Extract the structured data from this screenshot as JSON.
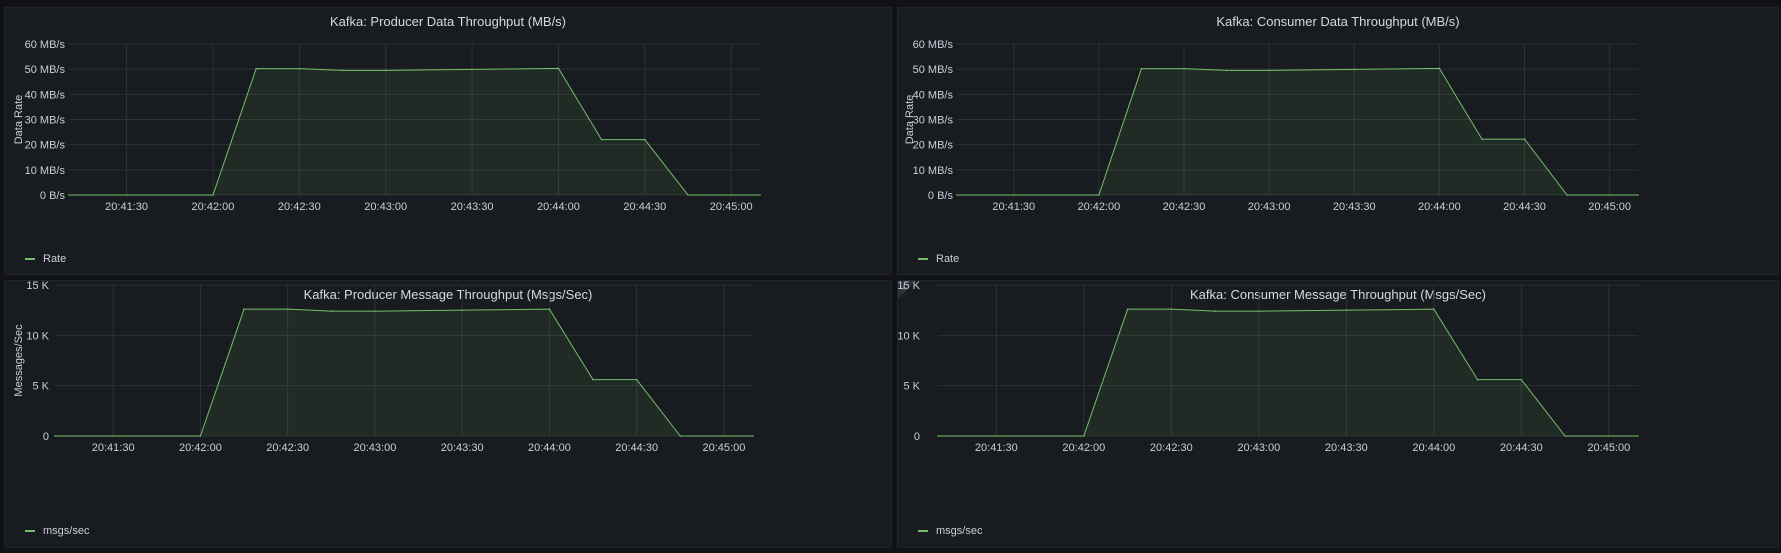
{
  "theme": {
    "series_color": "#73BF69",
    "grid_color": "#2c3235",
    "tick_color": "#c7d0d9"
  },
  "panels": [
    {
      "title": "Kafka: Producer Data Throughput (MB/s)",
      "legend_label": "Rate",
      "info_icon": false
    },
    {
      "title": "Kafka: Consumer Data Throughput (MB/s)",
      "legend_label": "Rate",
      "info_icon": false
    },
    {
      "title": "Kafka: Producer Message Throughput (Msgs/Sec)",
      "legend_label": "msgs/sec",
      "info_icon": false
    },
    {
      "title": "Kafka: Consumer Message Throughput (Msgs/Sec)",
      "legend_label": "msgs/sec",
      "info_icon": true,
      "info_glyph": "i"
    }
  ],
  "chart_data": [
    {
      "type": "area",
      "title": "Kafka: Producer Data Throughput (MB/s)",
      "ylabel": "Data Rate",
      "xlabel": "",
      "x_tick_labels": [
        "20:41:30",
        "20:42:00",
        "20:42:30",
        "20:43:00",
        "20:43:30",
        "20:44:00",
        "20:44:30",
        "20:45:00"
      ],
      "y_tick_labels": [
        "0 B/s",
        "10 MB/s",
        "20 MB/s",
        "30 MB/s",
        "40 MB/s",
        "50 MB/s",
        "60 MB/s"
      ],
      "ylim": [
        0,
        60
      ],
      "xlim": [
        "20:41:10",
        "20:45:10"
      ],
      "grid": true,
      "legend_position": "bottom-left",
      "series": [
        {
          "name": "Rate",
          "x": [
            "20:41:10",
            "20:41:30",
            "20:42:00",
            "20:42:15",
            "20:42:30",
            "20:42:45",
            "20:43:00",
            "20:43:30",
            "20:44:00",
            "20:44:15",
            "20:44:30",
            "20:44:45",
            "20:45:00",
            "20:45:10"
          ],
          "values": [
            0,
            0,
            0,
            50.2,
            50.2,
            49.5,
            49.5,
            49.9,
            50.3,
            22.0,
            22.0,
            0,
            0,
            0
          ]
        }
      ]
    },
    {
      "type": "area",
      "title": "Kafka: Consumer Data Throughput (MB/s)",
      "ylabel": "Data Rate",
      "xlabel": "",
      "x_tick_labels": [
        "20:41:30",
        "20:42:00",
        "20:42:30",
        "20:43:00",
        "20:43:30",
        "20:44:00",
        "20:44:30",
        "20:45:00"
      ],
      "y_tick_labels": [
        "0 B/s",
        "10 MB/s",
        "20 MB/s",
        "30 MB/s",
        "40 MB/s",
        "50 MB/s",
        "60 MB/s"
      ],
      "ylim": [
        0,
        60
      ],
      "xlim": [
        "20:41:10",
        "20:45:10"
      ],
      "grid": true,
      "legend_position": "bottom-left",
      "series": [
        {
          "name": "Rate",
          "x": [
            "20:41:10",
            "20:41:30",
            "20:42:00",
            "20:42:15",
            "20:42:30",
            "20:42:45",
            "20:43:00",
            "20:43:30",
            "20:44:00",
            "20:44:15",
            "20:44:30",
            "20:44:45",
            "20:45:00",
            "20:45:10"
          ],
          "values": [
            0,
            0,
            0,
            50.2,
            50.2,
            49.5,
            49.5,
            49.9,
            50.3,
            22.2,
            22.2,
            0,
            0,
            0
          ]
        }
      ]
    },
    {
      "type": "area",
      "title": "Kafka: Producer Message Throughput (Msgs/Sec)",
      "ylabel": "Messages/Sec",
      "xlabel": "",
      "x_tick_labels": [
        "20:41:30",
        "20:42:00",
        "20:42:30",
        "20:43:00",
        "20:43:30",
        "20:44:00",
        "20:44:30",
        "20:45:00"
      ],
      "y_tick_labels": [
        "0",
        "5 K",
        "10 K",
        "15 K"
      ],
      "ylim": [
        0,
        15000
      ],
      "xlim": [
        "20:41:10",
        "20:45:10"
      ],
      "grid": true,
      "legend_position": "bottom-left",
      "series": [
        {
          "name": "msgs/sec",
          "x": [
            "20:41:10",
            "20:41:30",
            "20:42:00",
            "20:42:15",
            "20:42:30",
            "20:42:45",
            "20:43:00",
            "20:43:30",
            "20:44:00",
            "20:44:15",
            "20:44:30",
            "20:44:45",
            "20:45:00",
            "20:45:10"
          ],
          "values": [
            0,
            0,
            0,
            12600,
            12600,
            12400,
            12400,
            12500,
            12600,
            5600,
            5600,
            0,
            0,
            0
          ]
        }
      ]
    },
    {
      "type": "area",
      "title": "Kafka: Consumer Message Throughput (Msgs/Sec)",
      "ylabel": "",
      "xlabel": "",
      "x_tick_labels": [
        "20:41:30",
        "20:42:00",
        "20:42:30",
        "20:43:00",
        "20:43:30",
        "20:44:00",
        "20:44:30",
        "20:45:00"
      ],
      "y_tick_labels": [
        "0",
        "5 K",
        "10 K",
        "15 K"
      ],
      "ylim": [
        0,
        15000
      ],
      "xlim": [
        "20:41:10",
        "20:45:10"
      ],
      "grid": true,
      "legend_position": "bottom-left",
      "series": [
        {
          "name": "msgs/sec",
          "x": [
            "20:41:10",
            "20:41:30",
            "20:42:00",
            "20:42:15",
            "20:42:30",
            "20:42:45",
            "20:43:00",
            "20:43:30",
            "20:44:00",
            "20:44:15",
            "20:44:30",
            "20:44:45",
            "20:45:00",
            "20:45:10"
          ],
          "values": [
            0,
            0,
            0,
            12600,
            12600,
            12400,
            12400,
            12500,
            12600,
            5600,
            5600,
            0,
            0,
            0
          ]
        }
      ]
    }
  ]
}
